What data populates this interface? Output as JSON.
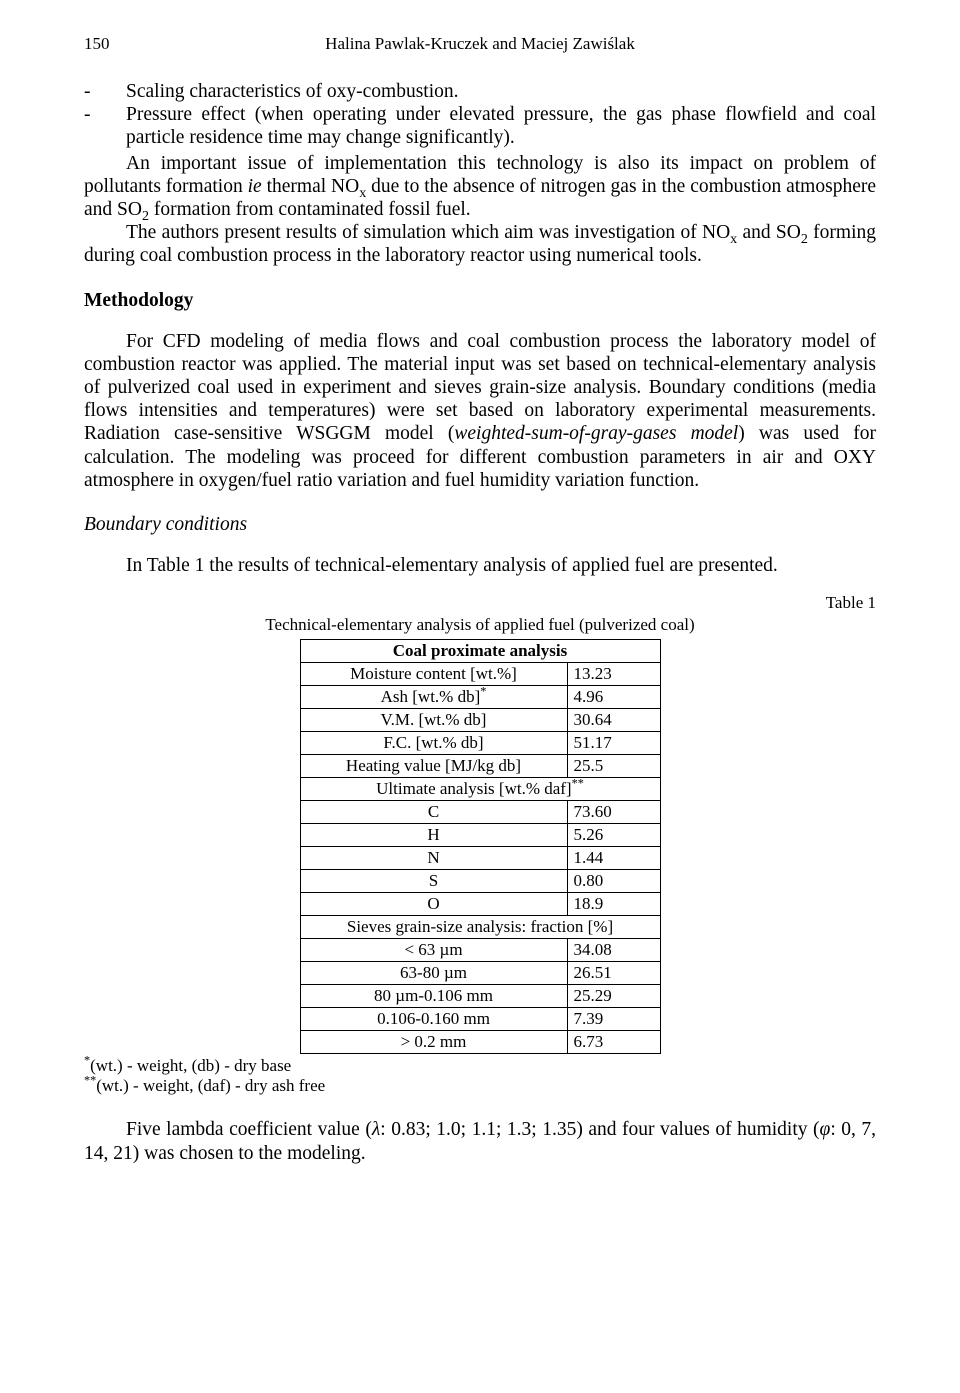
{
  "header": {
    "page_number": "150",
    "authors": "Halina Pawlak-Kruczek and Maciej Zawiślak"
  },
  "bullets": [
    "Scaling characteristics of oxy-combustion.",
    "Pressure effect (when operating under elevated pressure, the gas phase flowfield and coal particle residence time may change significantly)."
  ],
  "para1_a": "An important issue of implementation this technology is also its impact on problem of pollutants formation ",
  "para1_b": " thermal NO",
  "para1_c": " due to the absence of nitrogen gas in the combustion atmosphere and SO",
  "para1_d": " formation from contaminated fossil fuel.",
  "para2_a": "The authors present results of simulation which aim was investigation of NO",
  "para2_b": " and SO",
  "para2_c": " forming during coal combustion process in the laboratory reactor using numerical tools.",
  "ie": "ie",
  "methodology": {
    "heading": "Methodology",
    "para_a": "For CFD modeling of media flows and coal combustion process the laboratory model of combustion reactor was applied. The material input was set based on technical-elementary analysis of pulverized coal used in experiment and sieves grain-size analysis. Boundary conditions (media flows intensities and temperatures) were set based on laboratory experimental measurements. Radiation case-sensitive WSGGM model (",
    "para_b": ") was used for calculation. The modeling was proceed for different combustion parameters in air and OXY atmosphere in oxygen/fuel ratio variation and fuel humidity variation function.",
    "model_name": "weighted-sum-of-gray-gases model"
  },
  "boundary": {
    "heading": "Boundary conditions",
    "para": "In Table 1 the results of technical-elementary analysis of applied fuel are presented."
  },
  "table": {
    "label": "Table 1",
    "caption": "Technical-elementary analysis of applied fuel (pulverized coal)",
    "header": "Coal proximate analysis",
    "sec2": "Ultimate analysis [wt.% daf]",
    "sec3": "Sieves grain-size analysis: fraction [%]",
    "rows1": [
      {
        "l": "Moisture content [wt.%]",
        "v": "13.23"
      },
      {
        "l": "Ash [wt.% db]",
        "v": "4.96",
        "sup": "*"
      },
      {
        "l": "V.M. [wt.% db]",
        "v": "30.64"
      },
      {
        "l": "F.C. [wt.% db]",
        "v": "51.17"
      },
      {
        "l": "Heating value [MJ/kg db]",
        "v": "25.5"
      }
    ],
    "rows2": [
      {
        "l": "C",
        "v": "73.60"
      },
      {
        "l": "H",
        "v": "5.26"
      },
      {
        "l": "N",
        "v": "1.44"
      },
      {
        "l": "S",
        "v": "0.80"
      },
      {
        "l": "O",
        "v": "18.9"
      }
    ],
    "rows3": [
      {
        "l": "< 63 µm",
        "v": "34.08"
      },
      {
        "l": "63-80 µm",
        "v": "26.51"
      },
      {
        "l": "80 µm-0.106 mm",
        "v": "25.29"
      },
      {
        "l": "0.106-0.160 mm",
        "v": "7.39"
      },
      {
        "l": "> 0.2 mm",
        "v": "6.73"
      }
    ]
  },
  "footnotes": {
    "a": "(wt.) - weight, (db) - dry base",
    "b": "(wt.) - weight, (daf) - dry ash free"
  },
  "closing_a": "Five lambda coefficient value (",
  "closing_b": ": 0.83; 1.0; 1.1; 1.3; 1.35) and four values of humidity (",
  "closing_c": ": 0, 7, 14, 21) was chosen to the modeling.",
  "lambda": "λ",
  "phi": "φ"
}
